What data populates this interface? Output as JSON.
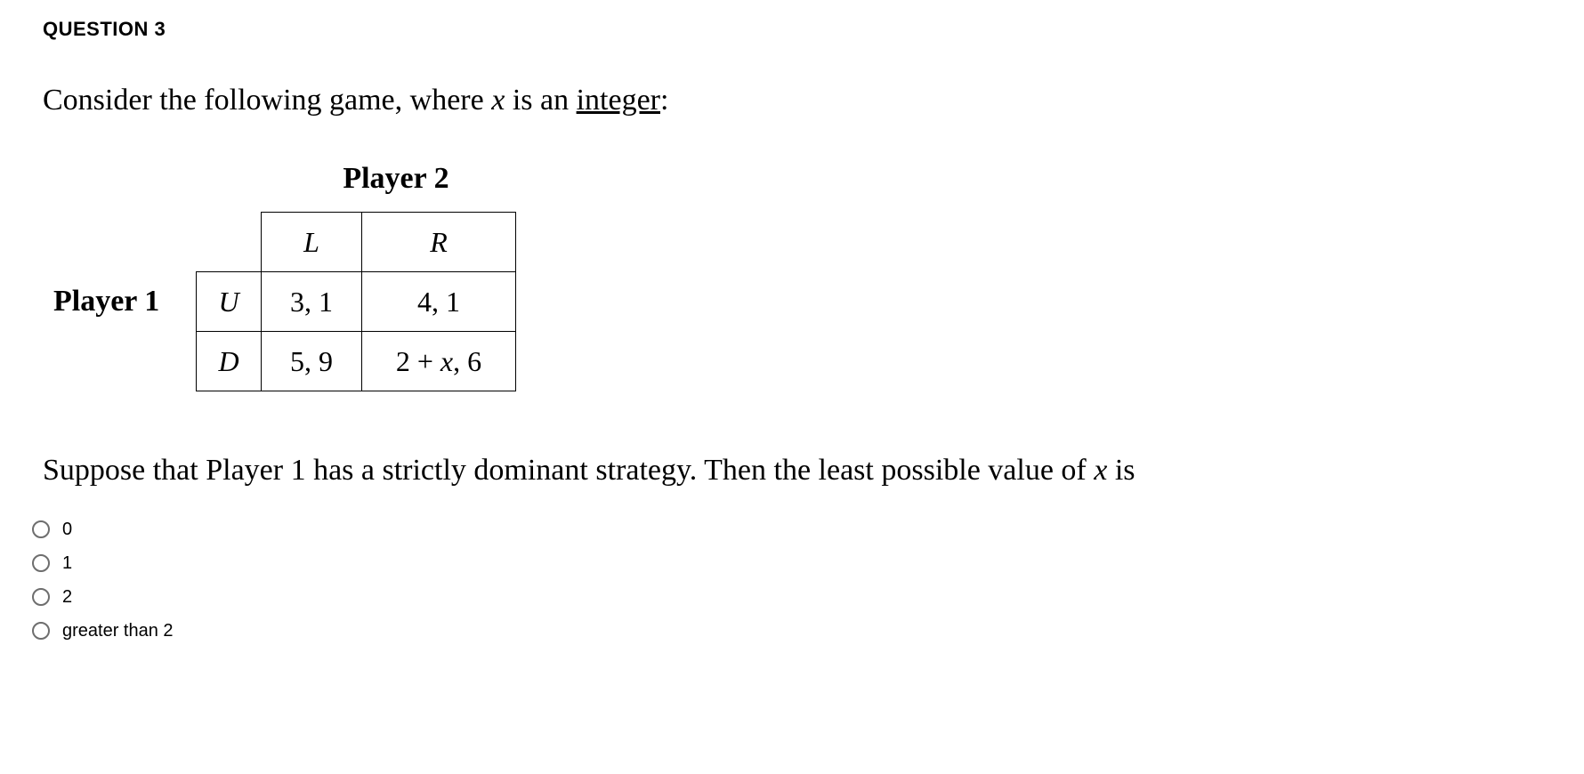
{
  "question_label": "QUESTION 3",
  "prompt_pre": "Consider the following game, where ",
  "prompt_var": "x",
  "prompt_mid": " is an ",
  "prompt_underlined": "integer",
  "prompt_post": ":",
  "game": {
    "player1_label": "Player 1",
    "player2_label": "Player 2",
    "col_headers": [
      "L",
      "R"
    ],
    "row_headers": [
      "U",
      "D"
    ],
    "cells": [
      [
        "3, 1",
        "4, 1"
      ],
      [
        "5, 9",
        "2 + x, 6"
      ]
    ],
    "border_color": "#000000",
    "text_color": "#000000",
    "background_color": "#ffffff",
    "cell_fontsize": 32,
    "label_fontsize": 34
  },
  "question_text_pre": "Suppose that Player 1 has a strictly dominant strategy. Then the least possible value of ",
  "question_text_var": "x",
  "question_text_post": " is",
  "options": [
    {
      "label": "0"
    },
    {
      "label": "1"
    },
    {
      "label": "2"
    },
    {
      "label": "greater than 2"
    }
  ],
  "styling": {
    "page_bg": "#ffffff",
    "text_color": "#000000",
    "question_label_fontsize": 22,
    "prompt_fontsize": 34,
    "option_fontsize": 20,
    "radio_border_color": "#6e6e6e"
  }
}
